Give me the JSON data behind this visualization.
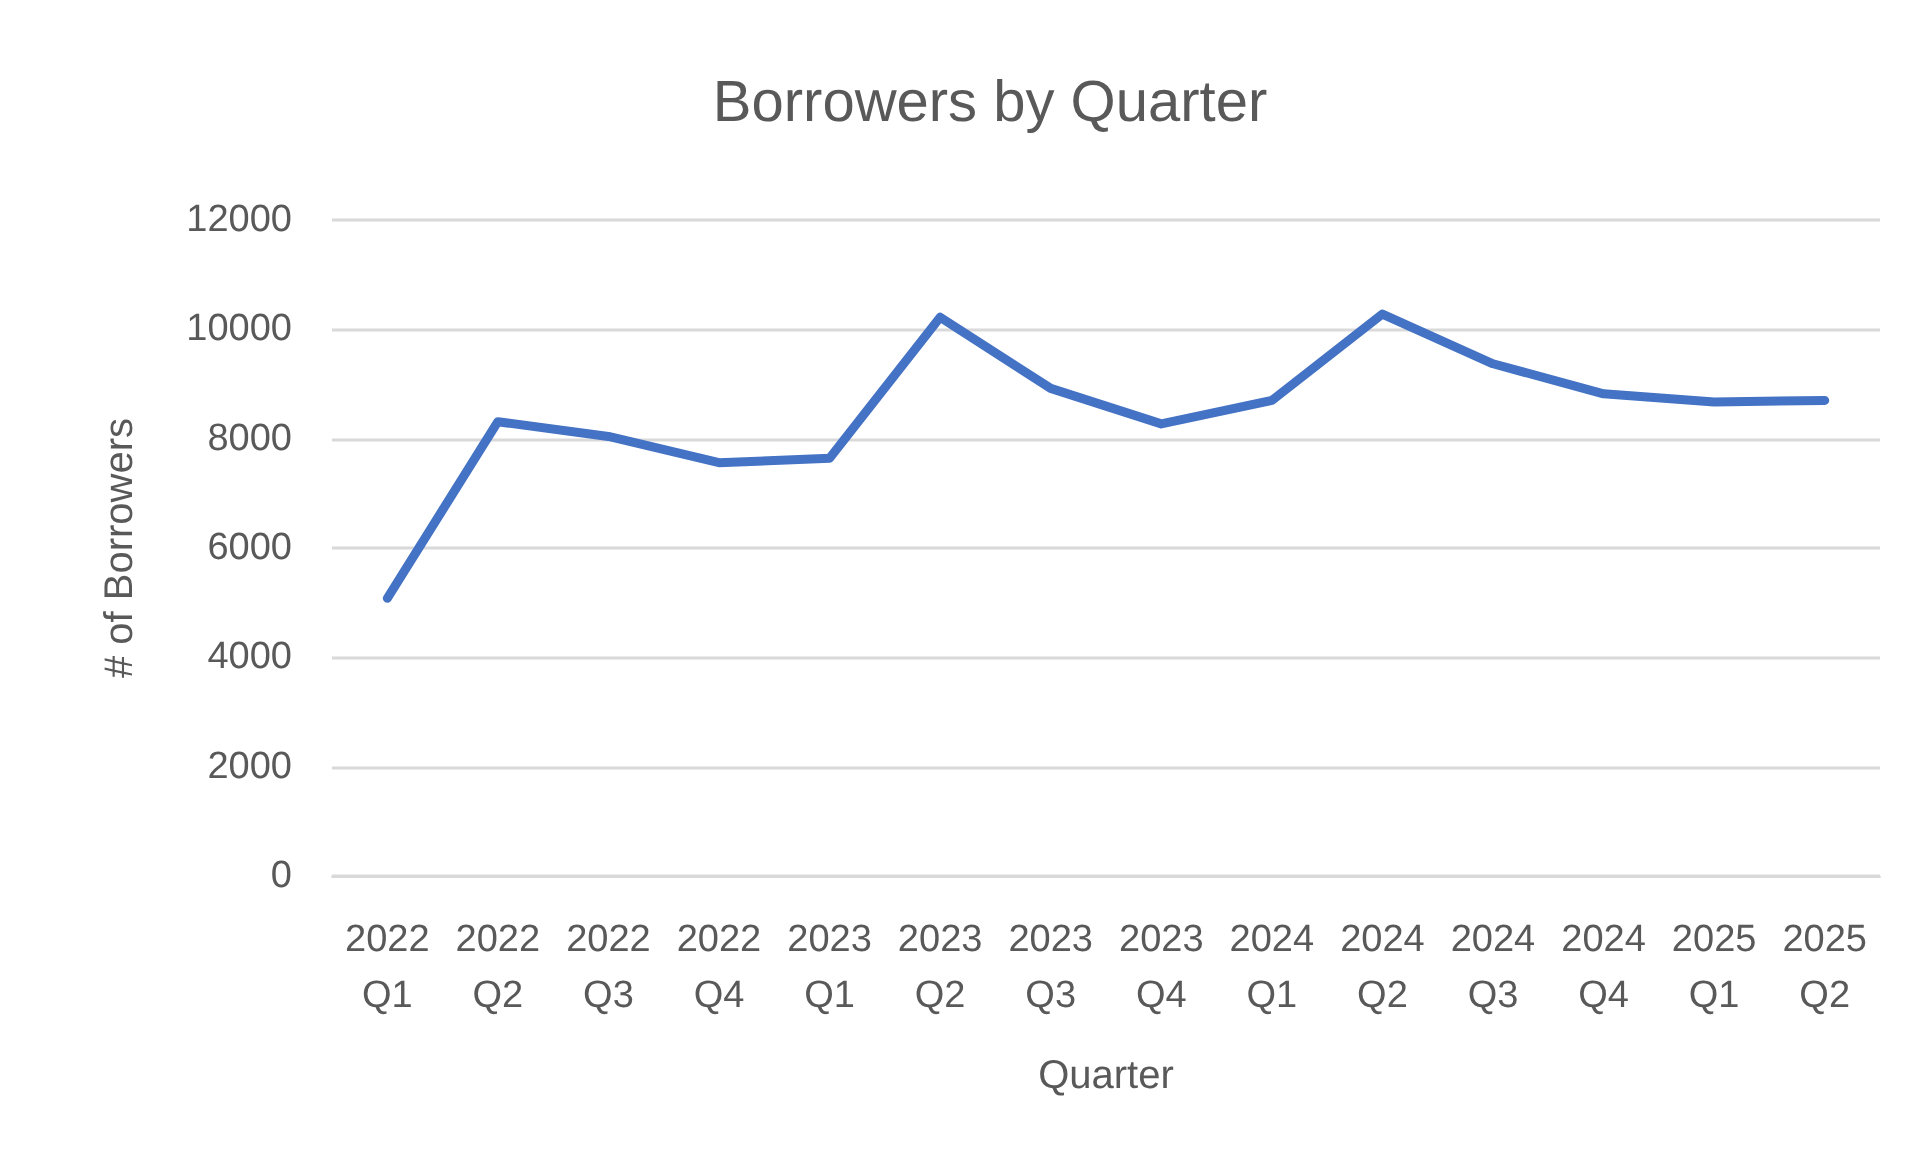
{
  "chart_data": {
    "type": "line",
    "title": "Borrowers by Quarter",
    "xlabel": "Quarter",
    "ylabel": "# of Borrowers",
    "categories": [
      "2022\nQ1",
      "2022\nQ2",
      "2022\nQ3",
      "2022\nQ4",
      "2023\nQ1",
      "2023\nQ2",
      "2023\nQ3",
      "2023\nQ4",
      "2024\nQ1",
      "2024\nQ2",
      "2024\nQ3",
      "2024\nQ4",
      "2025\nQ1",
      "2025\nQ2"
    ],
    "series": [
      {
        "color": "#4472c4",
        "values": [
          5080,
          8310,
          8040,
          7560,
          7640,
          10220,
          8920,
          8270,
          8700,
          10280,
          9370,
          8820,
          8670,
          8700
        ]
      }
    ],
    "ylim": [
      0,
      12000
    ],
    "yticks": [
      0,
      2000,
      4000,
      6000,
      8000,
      10000,
      12000
    ],
    "grid": "y",
    "marker": "none",
    "line_style": "solid"
  }
}
